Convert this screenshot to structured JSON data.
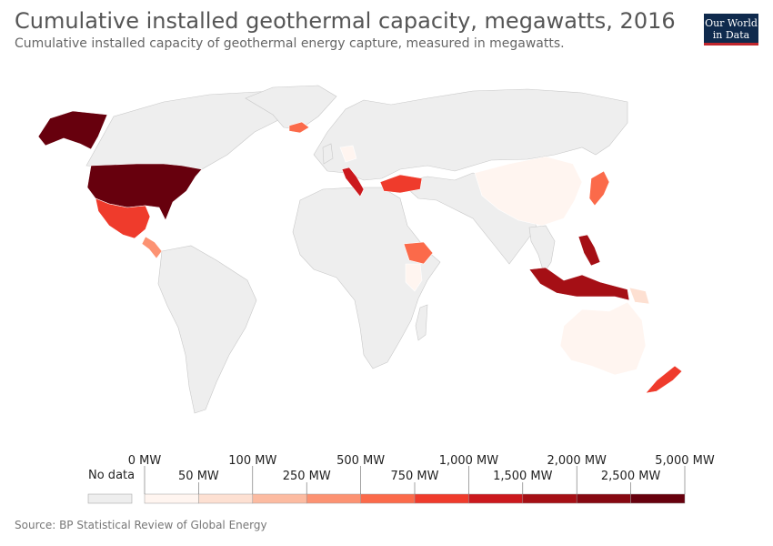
{
  "header": {
    "title": "Cumulative installed geothermal capacity, megawatts, 2016",
    "subtitle": "Cumulative installed capacity of geothermal energy capture, measured in megawatts."
  },
  "logo": {
    "line1": "Our World",
    "line2": "in Data"
  },
  "legend": {
    "no_data_label": "No data",
    "no_data_color": "#eeeeee",
    "top_labels": [
      "0 MW",
      "100 MW",
      "500 MW",
      "1,000 MW",
      "2,000 MW",
      "5,000 MW"
    ],
    "bottom_labels": [
      "50 MW",
      "250 MW",
      "750 MW",
      "1,500 MW",
      "2,500 MW"
    ],
    "bins": [
      "#fff5f0",
      "#fde0d2",
      "#fcbba1",
      "#fc9272",
      "#fb6a4a",
      "#ef3b2c",
      "#cb181d",
      "#a50f15",
      "#860811",
      "#67000d"
    ]
  },
  "map_colors": {
    "no_data": "#eeeeee",
    "border": "#c8c8c8"
  },
  "countries": [
    {
      "name": "United States",
      "bin": 9
    },
    {
      "name": "Alaska",
      "bin": 9
    },
    {
      "name": "Mexico",
      "bin": 5
    },
    {
      "name": "Central America",
      "bin": 3
    },
    {
      "name": "Iceland",
      "bin": 4
    },
    {
      "name": "Italy",
      "bin": 6
    },
    {
      "name": "Turkey",
      "bin": 5
    },
    {
      "name": "Kenya",
      "bin": 4
    },
    {
      "name": "Ethiopia",
      "bin": 0
    },
    {
      "name": "China",
      "bin": 0
    },
    {
      "name": "Japan",
      "bin": 4
    },
    {
      "name": "Philippines",
      "bin": 7
    },
    {
      "name": "Indonesia",
      "bin": 7
    },
    {
      "name": "Papua New Guinea",
      "bin": 1
    },
    {
      "name": "Australia",
      "bin": 0
    },
    {
      "name": "New Zealand",
      "bin": 5
    },
    {
      "name": "Germany",
      "bin": 0
    }
  ],
  "source": "Source: BP Statistical Review of Global Energy"
}
